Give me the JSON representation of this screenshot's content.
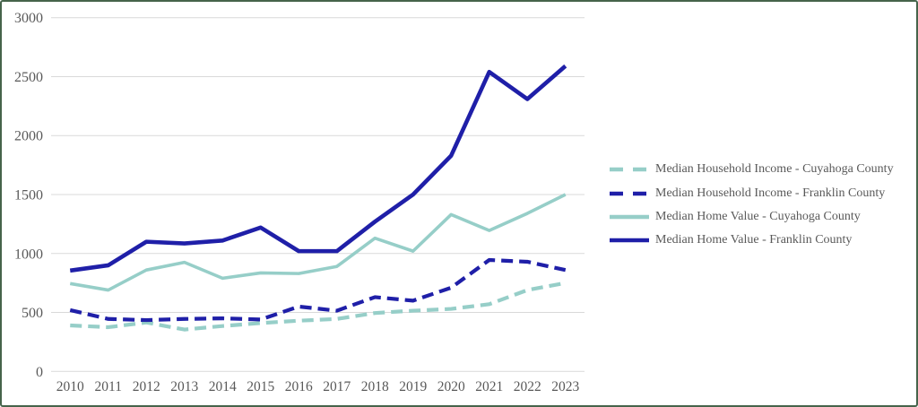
{
  "chart_data": {
    "type": "line",
    "title": "",
    "xlabel": "",
    "ylabel": "",
    "categories": [
      "2010",
      "2011",
      "2012",
      "2013",
      "2014",
      "2015",
      "2016",
      "2017",
      "2018",
      "2019",
      "2020",
      "2021",
      "2022",
      "2023"
    ],
    "series": [
      {
        "name": "Median Household Income - Cuyahoga County",
        "color": "#96CEC8",
        "style": "dashed",
        "values": [
          390,
          375,
          415,
          355,
          385,
          410,
          430,
          445,
          495,
          515,
          530,
          570,
          690,
          750
        ]
      },
      {
        "name": "Median Household Income - Franklin County",
        "color": "#1F1FA8",
        "style": "dashed",
        "values": [
          520,
          445,
          435,
          445,
          450,
          440,
          550,
          515,
          630,
          600,
          710,
          945,
          930,
          860
        ]
      },
      {
        "name": "Median Home Value - Cuyahoga County",
        "color": "#96CEC8",
        "style": "solid",
        "values": [
          745,
          690,
          860,
          925,
          790,
          835,
          830,
          890,
          1130,
          1020,
          1330,
          1195,
          1340,
          1500
        ]
      },
      {
        "name": "Median Home Value - Franklin County",
        "color": "#1F1FA8",
        "style": "solid",
        "values": [
          855,
          900,
          1100,
          1085,
          1110,
          1220,
          1020,
          1020,
          1270,
          1500,
          1830,
          2540,
          2310,
          2590
        ]
      }
    ],
    "ylim": [
      0,
      3000
    ],
    "yticks": [
      0,
      500,
      1000,
      1500,
      2000,
      2500,
      3000
    ],
    "grid": true,
    "legend_position": "right"
  },
  "colors": {
    "frame_border": "#46644B",
    "gridline": "#D9D9D9",
    "axis_text": "#595959",
    "teal": "#96CEC8",
    "navy": "#1F1FA8"
  }
}
